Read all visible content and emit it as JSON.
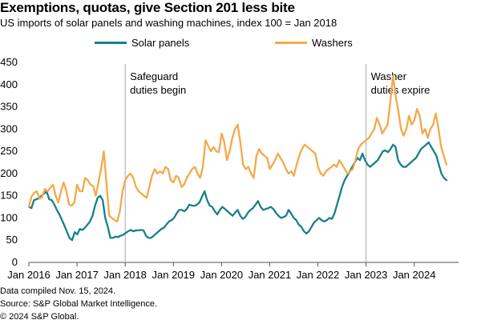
{
  "title": "Exemptions, quotas, give Section 201 less bite",
  "subtitle": "US imports of solar panels and washing machines, index 100 = Jan 2018",
  "footer": {
    "compiled": "Data compiled Nov. 15, 2024.",
    "source": "Source: S&P Global Market Intelligence.",
    "copyright": "© 2024 S&P Global."
  },
  "colors": {
    "solar": "#18808b",
    "washers": "#f4a94a",
    "axis": "#555555",
    "refline": "#aaaaaa"
  },
  "chart_data": {
    "type": "line",
    "title": "Exemptions, quotas, give Section 201 less bite",
    "ylabel": "Index 100 = Jan 2018",
    "xlabel": "",
    "ylim": [
      0,
      450
    ],
    "yticks": [
      0,
      50,
      100,
      150,
      200,
      250,
      300,
      350,
      400,
      450
    ],
    "xlim": [
      2016.0,
      2024.92
    ],
    "xticks": [
      {
        "value": 2016,
        "label": "Jan 2016"
      },
      {
        "value": 2017,
        "label": "Jan 2017"
      },
      {
        "value": 2018,
        "label": "Jan 2018"
      },
      {
        "value": 2019,
        "label": "Jan 2019"
      },
      {
        "value": 2020,
        "label": "Jan 2020"
      },
      {
        "value": 2021,
        "label": "Jan 2021"
      },
      {
        "value": 2022,
        "label": "Jan 2022"
      },
      {
        "value": 2023,
        "label": "Jan 2023"
      },
      {
        "value": 2024,
        "label": "Jan 2024"
      }
    ],
    "annotations": [
      {
        "x": 2018.0,
        "lines": [
          "Safeguard",
          "duties begin"
        ]
      },
      {
        "x": 2023.0,
        "lines": [
          "Washer",
          "duties expire"
        ]
      }
    ],
    "x_start": 2016.0,
    "x_step_months": 1,
    "series": [
      {
        "name": "Solar panels",
        "values": [
          125,
          122,
          140,
          142,
          145,
          150,
          155,
          160,
          142,
          140,
          130,
          118,
          108,
          95,
          82,
          68,
          55,
          50,
          68,
          63,
          75,
          73,
          78,
          85,
          92,
          105,
          128,
          145,
          150,
          140,
          100,
          80,
          55,
          55,
          58,
          57,
          60,
          62,
          66,
          70,
          73,
          70,
          72,
          72,
          73,
          72,
          60,
          55,
          55,
          60,
          65,
          70,
          75,
          78,
          85,
          92,
          95,
          100,
          110,
          118,
          118,
          115,
          120,
          130,
          128,
          127,
          130,
          135,
          148,
          160,
          140,
          128,
          125,
          115,
          108,
          118,
          125,
          120,
          115,
          110,
          105,
          112,
          118,
          105,
          98,
          102,
          112,
          118,
          122,
          130,
          138,
          125,
          118,
          120,
          122,
          125,
          120,
          112,
          105,
          100,
          102,
          105,
          118,
          110,
          100,
          95,
          85,
          80,
          70,
          65,
          70,
          80,
          90,
          95,
          100,
          95,
          92,
          95,
          100,
          98,
          110,
          130,
          150,
          170,
          185,
          195,
          205,
          215,
          225,
          235,
          230,
          245,
          230,
          220,
          215,
          220,
          225,
          230,
          240,
          250,
          252,
          248,
          255,
          265,
          260,
          230,
          220,
          215,
          215,
          220,
          225,
          230,
          235,
          245,
          255,
          260,
          265,
          270,
          260,
          250,
          240,
          220,
          200,
          190,
          185
        ],
        "x_step_months_override": 0.5
      },
      {
        "name": "Washers",
        "values": [
          125,
          148,
          157,
          160,
          143,
          148,
          165,
          160,
          168,
          175,
          150,
          135,
          160,
          180,
          160,
          130,
          128,
          135,
          175,
          160,
          160,
          190,
          185,
          175,
          172,
          150,
          180,
          212,
          250,
          178,
          105,
          100,
          95,
          92,
          115,
          160,
          185,
          195,
          200,
          190,
          170,
          160,
          155,
          150,
          145,
          170,
          195,
          210,
          200,
          205,
          200,
          215,
          210,
          185,
          180,
          195,
          190,
          170,
          175,
          190,
          200,
          210,
          215,
          200,
          190,
          215,
          275,
          262,
          250,
          260,
          250,
          248,
          290,
          270,
          230,
          250,
          280,
          300,
          310,
          270,
          220,
          210,
          215,
          200,
          190,
          240,
          255,
          245,
          240,
          235,
          210,
          220,
          230,
          245,
          235,
          225,
          210,
          200,
          205,
          195,
          220,
          240,
          255,
          265,
          260,
          255,
          250,
          245,
          215,
          200,
          195,
          205,
          210,
          215,
          220,
          215,
          230,
          220,
          210,
          200,
          205,
          210,
          230,
          255,
          265,
          270,
          275,
          280,
          290,
          300,
          325,
          310,
          290,
          300,
          310,
          360,
          420,
          375,
          340,
          300,
          285,
          300,
          330,
          310,
          320,
          345,
          330,
          290,
          300,
          280,
          300,
          310,
          335,
          300,
          260,
          240,
          220
        ],
        "x_step_months_override": 0.5
      }
    ],
    "legend": [
      {
        "name": "Solar panels",
        "position": "top-left"
      },
      {
        "name": "Washers",
        "position": "top-right"
      }
    ]
  }
}
